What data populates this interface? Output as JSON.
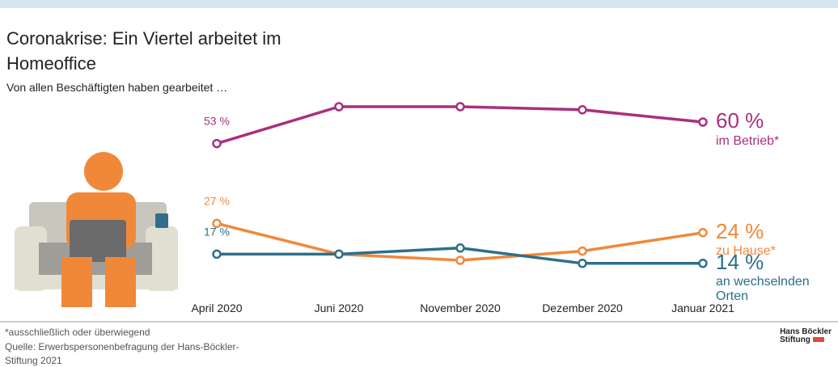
{
  "chart_data": {
    "type": "line",
    "title": "Coronakrise: Ein Viertel arbeitet im Homeoffice",
    "subtitle": "Von allen Beschäftigten haben gearbeitet …",
    "categories": [
      "April 2020",
      "Juni 2020",
      "November 2020",
      "Dezember 2020",
      "Januar 2021"
    ],
    "series": [
      {
        "name": "im Betrieb*",
        "color": "#a8307f",
        "values": [
          53,
          65,
          65,
          64,
          60
        ],
        "value_labels": [
          "53 %",
          null,
          null,
          null,
          "60 %"
        ]
      },
      {
        "name": "zu Hause*",
        "color": "#f0883a",
        "values": [
          27,
          17,
          15,
          18,
          24
        ],
        "value_labels": [
          "27 %",
          null,
          null,
          null,
          "24 %"
        ]
      },
      {
        "name": "an wechselnden Orten",
        "color": "#2d6f8a",
        "values": [
          17,
          17,
          19,
          14,
          14
        ],
        "value_labels": [
          "17 %",
          null,
          null,
          null,
          "14 %"
        ]
      }
    ],
    "ylim": [
      0,
      70
    ],
    "note": "*ausschließlich oder überwiegend",
    "source": "Quelle: Erwerbspersonenbefragung der Hans-Böckler-Stiftung 2021",
    "logo": [
      "Hans Böckler",
      "Stiftung"
    ]
  }
}
